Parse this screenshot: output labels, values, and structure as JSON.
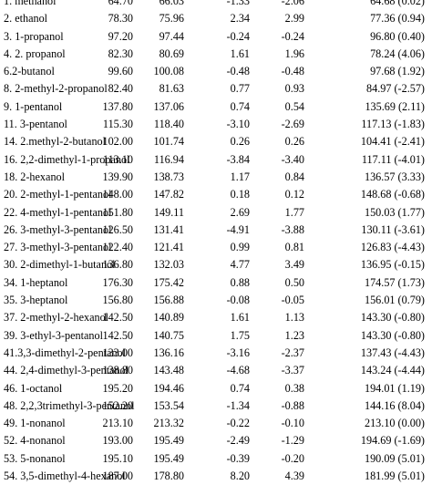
{
  "table": {
    "rows": [
      {
        "name": "1. methanol",
        "exp": "64.70",
        "pred": "66.03",
        "d1": "-1.33",
        "d2": "-2.06",
        "alt": "64.68 (0.02)"
      },
      {
        "name": "2. ethanol",
        "exp": "78.30",
        "pred": "75.96",
        "d1": "2.34",
        "d2": "2.99",
        "alt": "77.36 (0.94)"
      },
      {
        "name": "3. 1-propanol",
        "exp": "97.20",
        "pred": "97.44",
        "d1": "-0.24",
        "d2": "-0.24",
        "alt": "96.80 (0.40)"
      },
      {
        "name": "4. 2. propanol",
        "exp": "82.30",
        "pred": "80.69",
        "d1": "1.61",
        "d2": "1.96",
        "alt": "78.24 (4.06)"
      },
      {
        "name": "6.2-butanol",
        "exp": "99.60",
        "pred": "100.08",
        "d1": "-0.48",
        "d2": "-0.48",
        "alt": "97.68 (1.92)"
      },
      {
        "name": "8. 2-methyl-2-propanol",
        "exp": "82.40",
        "pred": "81.63",
        "d1": "0.77",
        "d2": "0.93",
        "alt": "84.97 (-2.57)"
      },
      {
        "name": "9. 1-pentanol",
        "exp": "137.80",
        "pred": "137.06",
        "d1": "0.74",
        "d2": "0.54",
        "alt": "135.69 (2.11)"
      },
      {
        "name": "11. 3-pentanol",
        "exp": "115.30",
        "pred": "118.40",
        "d1": "-3.10",
        "d2": "-2.69",
        "alt": "117.13 (-1.83)"
      },
      {
        "name": "14. 2.methyl-2-butanol",
        "exp": "102.00",
        "pred": "101.74",
        "d1": "0.26",
        "d2": "0.26",
        "alt": "104.41 (-2.41)"
      },
      {
        "name": "16. 2,2-dimethyl-1-propanol",
        "exp": "113.10",
        "pred": "116.94",
        "d1": "-3.84",
        "d2": "-3.40",
        "alt": "117.11 (-4.01)"
      },
      {
        "name": "18. 2-hexanol",
        "exp": "139.90",
        "pred": "138.73",
        "d1": "1.17",
        "d2": "0.84",
        "alt": "136.57 (3.33)"
      },
      {
        "name": "20. 2-methyl-1-pentanol",
        "exp": "148.00",
        "pred": "147.82",
        "d1": "0.18",
        "d2": "0.12",
        "alt": "148.68 (-0.68)"
      },
      {
        "name": "22. 4-methyl-1-pentanol",
        "exp": "151.80",
        "pred": "149.11",
        "d1": "2.69",
        "d2": "1.77",
        "alt": "150.03 (1.77)"
      },
      {
        "name": "26. 3-methyl-3-pentanol",
        "exp": "126.50",
        "pred": "131.41",
        "d1": "-4.91",
        "d2": "-3.88",
        "alt": "130.11 (-3.61)"
      },
      {
        "name": "27. 3-methyl-3-pentanol",
        "exp": "122.40",
        "pred": "121.41",
        "d1": "0.99",
        "d2": "0.81",
        "alt": "126.83 (-4.43)"
      },
      {
        "name": "30. 2-dimethyl-1-butanol",
        "exp": "136.80",
        "pred": "132.03",
        "d1": "4.77",
        "d2": "3.49",
        "alt": "136.95 (-0.15)"
      },
      {
        "name": "34. 1-heptanol",
        "exp": "176.30",
        "pred": "175.42",
        "d1": "0.88",
        "d2": "0.50",
        "alt": "174.57 (1.73)"
      },
      {
        "name": "35. 3-heptanol",
        "exp": "156.80",
        "pred": "156.88",
        "d1": "-0.08",
        "d2": "-0.05",
        "alt": "156.01 (0.79)"
      },
      {
        "name": "37. 2-methyl-2-hexanol",
        "exp": "142.50",
        "pred": "140.89",
        "d1": "1.61",
        "d2": "1.13",
        "alt": "143.30 (-0.80)"
      },
      {
        "name": "39. 3-ethyl-3-pentanol",
        "exp": "142.50",
        "pred": "140.75",
        "d1": "1.75",
        "d2": "1.23",
        "alt": "143.30 (-0.80)"
      },
      {
        "name": "41.3,3-dimethyl-2-pentanol",
        "exp": "133.00",
        "pred": "136.16",
        "d1": "-3.16",
        "d2": "-2.37",
        "alt": "137.43 (-4.43)"
      },
      {
        "name": "44. 2,4-dimethyl-3-pentanol",
        "exp": "138.80",
        "pred": "143.48",
        "d1": "-4.68",
        "d2": "-3.37",
        "alt": "143.24 (-4.44)"
      },
      {
        "name": "46. 1-octanol",
        "exp": "195.20",
        "pred": "194.46",
        "d1": "0.74",
        "d2": "0.38",
        "alt": "194.01 (1.19)"
      },
      {
        "name": "48. 2,2,3trimethyl-3-pentanol",
        "exp": "152.20",
        "pred": "153.54",
        "d1": "-1.34",
        "d2": "-0.88",
        "alt": "144.16 (8.04)"
      },
      {
        "name": "49. 1-nonanol",
        "exp": "213.10",
        "pred": "213.32",
        "d1": "-0.22",
        "d2": "-0.10",
        "alt": "213.10 (0.00)"
      },
      {
        "name": "52. 4-nonanol",
        "exp": "193.00",
        "pred": "195.49",
        "d1": "-2.49",
        "d2": "-1.29",
        "alt": "194.69 (-1.69)"
      },
      {
        "name": "53. 5-nonanol",
        "exp": "195.10",
        "pred": "195.49",
        "d1": "-0.39",
        "d2": "-0.20",
        "alt": "190.09 (5.01)"
      },
      {
        "name": "54. 3,5-dimethyl-4-hexanol",
        "exp": "187.00",
        "pred": "178.80",
        "d1": "8.20",
        "d2": "4.39",
        "alt": "181.99 (5.01)"
      }
    ]
  }
}
